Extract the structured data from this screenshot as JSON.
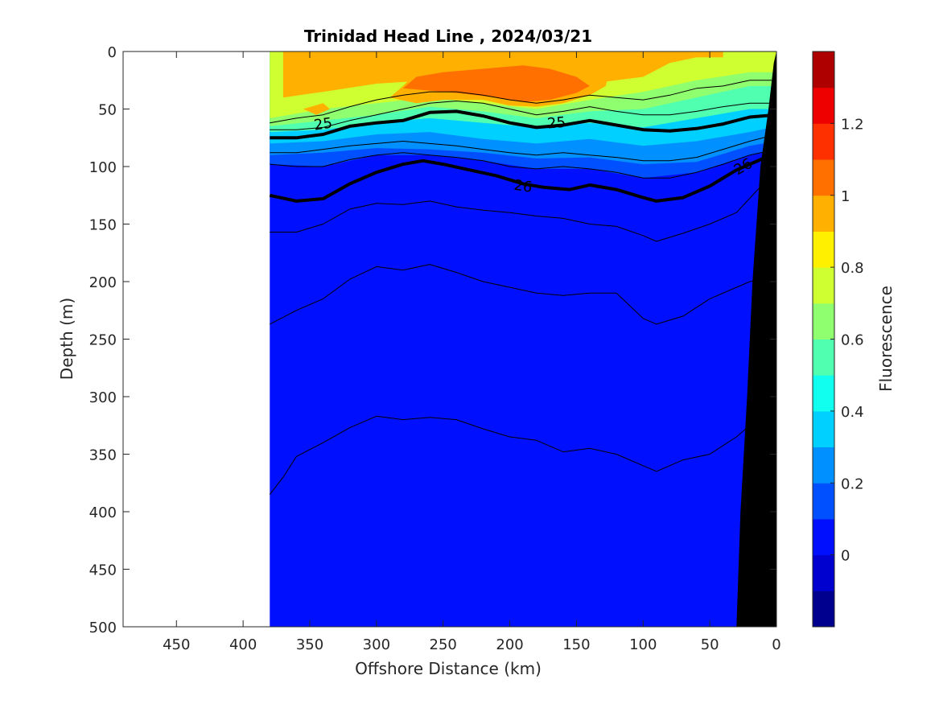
{
  "chart_data": {
    "type": "heatmap",
    "title": "Trinidad Head Line , 2024/03/21",
    "xlabel": "Offshore Distance (km)",
    "ylabel": "Depth (m)",
    "xlim": [
      490,
      0
    ],
    "ylim": [
      0,
      500
    ],
    "x_reversed": true,
    "y_reversed": true,
    "xticks": [
      450,
      400,
      350,
      300,
      250,
      200,
      150,
      100,
      50,
      0
    ],
    "yticks": [
      0,
      50,
      100,
      150,
      200,
      250,
      300,
      350,
      400,
      450,
      500
    ],
    "data_extent_km": [
      0,
      380
    ],
    "colorbar": {
      "label": "Fluorescence",
      "range": [
        -0.2,
        1.4
      ],
      "ticks": [
        0,
        0.2,
        0.4,
        0.6,
        0.8,
        1,
        1.2
      ],
      "tick_labels": [
        "0",
        "0.2",
        "0.4",
        "0.6",
        "0.8",
        "1",
        "1.2"
      ],
      "levels": [
        "#00008f",
        "#0000cf",
        "#0010ff",
        "#0050ff",
        "#0090ff",
        "#00d0ff",
        "#10ffef",
        "#50ffaf",
        "#90ff6f",
        "#cfff30",
        "#fff000",
        "#ffb000",
        "#ff7000",
        "#ff3000",
        "#ef0000",
        "#af0000"
      ]
    },
    "fluorescence_layers": [
      {
        "value": 0.1,
        "color": "#0010ff",
        "description": "deep background"
      },
      {
        "value": 0.25,
        "color": "#0050ff"
      },
      {
        "value": 0.35,
        "color": "#0090ff"
      },
      {
        "value": 0.45,
        "color": "#00d0ff"
      },
      {
        "value": 0.55,
        "color": "#50ffaf"
      },
      {
        "value": 0.7,
        "color": "#90ff6f"
      },
      {
        "value": 0.85,
        "color": "#cfff30"
      },
      {
        "value": 0.95,
        "color": "#ffb000"
      },
      {
        "value": 1.05,
        "color": "#ff7000"
      }
    ],
    "density_contours": [
      {
        "label": "25",
        "bold": true,
        "points": [
          [
            380,
            75
          ],
          [
            360,
            75
          ],
          [
            340,
            72
          ],
          [
            320,
            65
          ],
          [
            300,
            62
          ],
          [
            280,
            60
          ],
          [
            260,
            53
          ],
          [
            240,
            52
          ],
          [
            220,
            56
          ],
          [
            200,
            62
          ],
          [
            180,
            66
          ],
          [
            160,
            64
          ],
          [
            140,
            60
          ],
          [
            120,
            64
          ],
          [
            100,
            68
          ],
          [
            80,
            69
          ],
          [
            60,
            67
          ],
          [
            40,
            63
          ],
          [
            20,
            57
          ],
          [
            0,
            55
          ]
        ]
      },
      {
        "label": "26",
        "bold": true,
        "points": [
          [
            380,
            125
          ],
          [
            360,
            130
          ],
          [
            340,
            128
          ],
          [
            320,
            115
          ],
          [
            300,
            105
          ],
          [
            280,
            98
          ],
          [
            265,
            95
          ],
          [
            250,
            98
          ],
          [
            230,
            103
          ],
          [
            210,
            108
          ],
          [
            190,
            115
          ],
          [
            175,
            118
          ],
          [
            155,
            120
          ],
          [
            140,
            116
          ],
          [
            120,
            120
          ],
          [
            100,
            127
          ],
          [
            90,
            130
          ],
          [
            70,
            127
          ],
          [
            50,
            117
          ],
          [
            30,
            103
          ],
          [
            10,
            93
          ]
        ]
      },
      {
        "label": "",
        "bold": false,
        "points": [
          [
            380,
            157
          ],
          [
            360,
            157
          ],
          [
            340,
            150
          ],
          [
            320,
            137
          ],
          [
            300,
            132
          ],
          [
            280,
            133
          ],
          [
            260,
            130
          ],
          [
            240,
            135
          ],
          [
            220,
            138
          ],
          [
            200,
            140
          ],
          [
            180,
            143
          ],
          [
            160,
            145
          ],
          [
            140,
            150
          ],
          [
            120,
            152
          ],
          [
            100,
            160
          ],
          [
            90,
            165
          ],
          [
            70,
            158
          ],
          [
            50,
            150
          ],
          [
            30,
            140
          ],
          [
            10,
            115
          ]
        ]
      },
      {
        "label": "",
        "bold": false,
        "points": [
          [
            380,
            237
          ],
          [
            360,
            225
          ],
          [
            340,
            215
          ],
          [
            320,
            198
          ],
          [
            300,
            187
          ],
          [
            280,
            190
          ],
          [
            260,
            185
          ],
          [
            240,
            192
          ],
          [
            220,
            200
          ],
          [
            200,
            205
          ],
          [
            180,
            210
          ],
          [
            160,
            212
          ],
          [
            140,
            210
          ],
          [
            120,
            210
          ],
          [
            100,
            232
          ],
          [
            90,
            237
          ],
          [
            70,
            230
          ],
          [
            50,
            215
          ],
          [
            20,
            200
          ],
          [
            0,
            195
          ]
        ]
      },
      {
        "label": "",
        "bold": false,
        "points": [
          [
            380,
            385
          ],
          [
            370,
            370
          ],
          [
            360,
            352
          ],
          [
            340,
            340
          ],
          [
            320,
            327
          ],
          [
            300,
            317
          ],
          [
            280,
            320
          ],
          [
            260,
            318
          ],
          [
            240,
            320
          ],
          [
            220,
            328
          ],
          [
            200,
            335
          ],
          [
            180,
            338
          ],
          [
            160,
            348
          ],
          [
            140,
            345
          ],
          [
            120,
            350
          ],
          [
            100,
            360
          ],
          [
            90,
            365
          ],
          [
            70,
            355
          ],
          [
            50,
            350
          ],
          [
            30,
            335
          ],
          [
            10,
            315
          ]
        ]
      },
      {
        "label": "",
        "bold": false,
        "points": [
          [
            380,
            88
          ],
          [
            360,
            88
          ],
          [
            340,
            85
          ],
          [
            320,
            82
          ],
          [
            300,
            80
          ],
          [
            280,
            78
          ],
          [
            260,
            80
          ],
          [
            240,
            82
          ],
          [
            220,
            85
          ],
          [
            200,
            88
          ],
          [
            180,
            90
          ],
          [
            160,
            88
          ],
          [
            140,
            90
          ],
          [
            120,
            92
          ],
          [
            100,
            95
          ],
          [
            80,
            95
          ],
          [
            60,
            92
          ],
          [
            40,
            85
          ],
          [
            20,
            78
          ],
          [
            0,
            72
          ]
        ]
      },
      {
        "label": "",
        "bold": false,
        "points": [
          [
            380,
            98
          ],
          [
            360,
            100
          ],
          [
            340,
            100
          ],
          [
            320,
            94
          ],
          [
            300,
            90
          ],
          [
            280,
            88
          ],
          [
            260,
            90
          ],
          [
            240,
            92
          ],
          [
            220,
            95
          ],
          [
            200,
            100
          ],
          [
            180,
            102
          ],
          [
            160,
            100
          ],
          [
            140,
            102
          ],
          [
            120,
            105
          ],
          [
            100,
            110
          ],
          [
            80,
            110
          ],
          [
            60,
            105
          ],
          [
            40,
            98
          ],
          [
            20,
            90
          ],
          [
            0,
            85
          ]
        ]
      },
      {
        "label": "",
        "bold": false,
        "points": [
          [
            380,
            68
          ],
          [
            360,
            68
          ],
          [
            340,
            66
          ],
          [
            320,
            60
          ],
          [
            300,
            55
          ],
          [
            280,
            50
          ],
          [
            260,
            45
          ],
          [
            240,
            43
          ],
          [
            220,
            45
          ],
          [
            200,
            50
          ],
          [
            180,
            55
          ],
          [
            160,
            52
          ],
          [
            140,
            48
          ],
          [
            120,
            52
          ],
          [
            100,
            55
          ],
          [
            80,
            55
          ],
          [
            60,
            52
          ],
          [
            40,
            48
          ],
          [
            20,
            45
          ],
          [
            0,
            45
          ]
        ]
      },
      {
        "label": "",
        "bold": false,
        "points": [
          [
            380,
            62
          ],
          [
            360,
            58
          ],
          [
            340,
            55
          ],
          [
            320,
            48
          ],
          [
            300,
            42
          ],
          [
            280,
            38
          ],
          [
            260,
            35
          ],
          [
            240,
            35
          ],
          [
            220,
            38
          ],
          [
            200,
            42
          ],
          [
            180,
            45
          ],
          [
            160,
            42
          ],
          [
            140,
            38
          ],
          [
            120,
            40
          ],
          [
            100,
            42
          ],
          [
            80,
            38
          ],
          [
            60,
            32
          ],
          [
            40,
            30
          ],
          [
            20,
            25
          ],
          [
            0,
            25
          ]
        ]
      }
    ],
    "shelf_polygon_km_m": [
      [
        0,
        0
      ],
      [
        0,
        500
      ],
      [
        30,
        500
      ],
      [
        27,
        400
      ],
      [
        22,
        300
      ],
      [
        18,
        200
      ],
      [
        12,
        100
      ],
      [
        6,
        50
      ],
      [
        2,
        10
      ],
      [
        0,
        0
      ]
    ]
  }
}
